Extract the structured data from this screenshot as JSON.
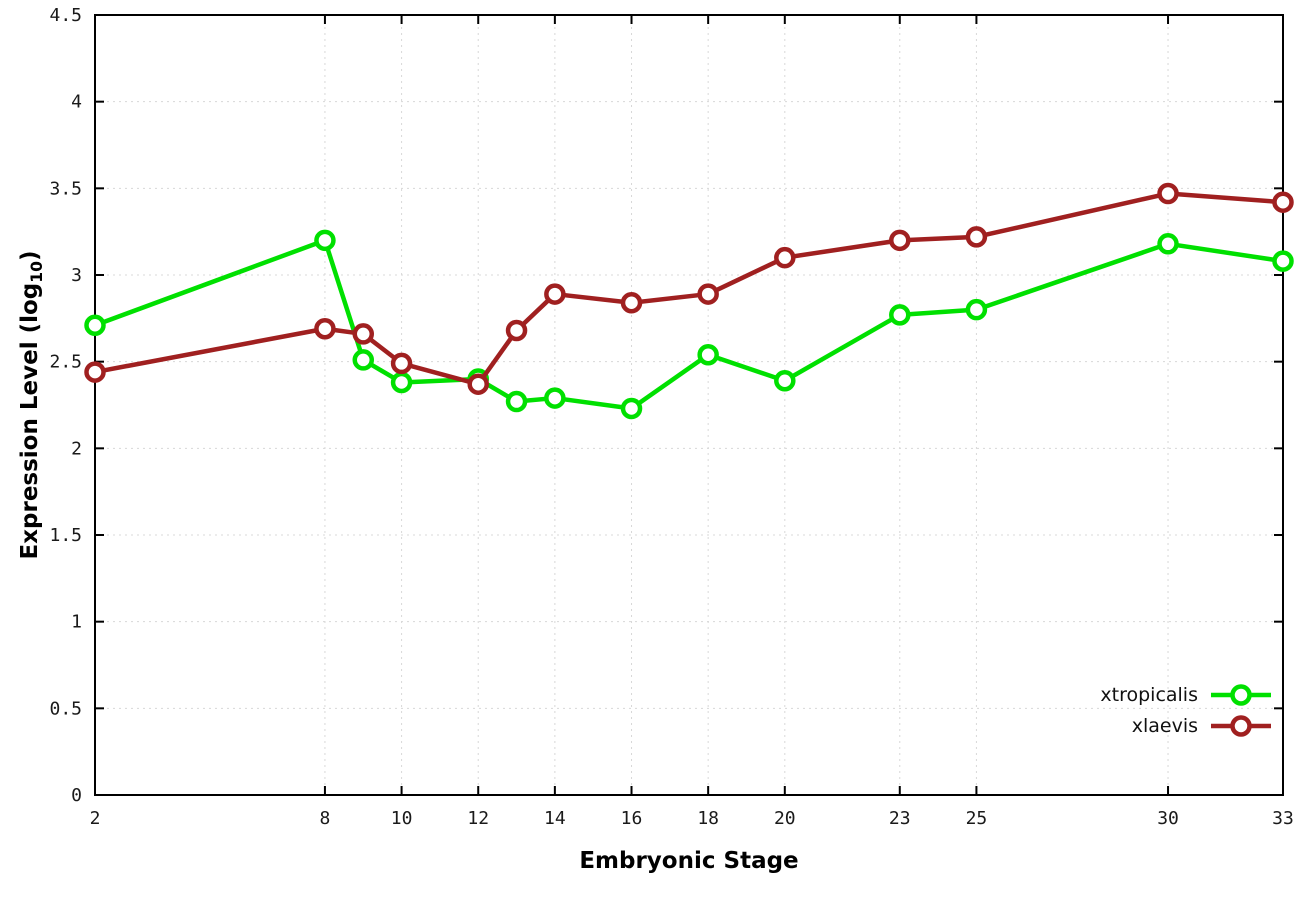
{
  "chart": {
    "ylabel_prefix": "Expression Level (log",
    "ylabel_sub": "10",
    "ylabel_suffix": ")",
    "xlabel": "Embryonic Stage"
  },
  "chart_data": {
    "type": "line",
    "title": "",
    "xlabel": "Embryonic Stage",
    "ylabel": "Expression Level (log10)",
    "xlim": [
      2,
      33
    ],
    "ylim": [
      0,
      4.5
    ],
    "grid": true,
    "legend_position": "bottom-right",
    "marker": "open-circle",
    "xticks": [
      2,
      8,
      10,
      12,
      14,
      16,
      18,
      20,
      23,
      25,
      30,
      33
    ],
    "yticks": [
      0,
      0.5,
      1,
      1.5,
      2,
      2.5,
      3,
      3.5,
      4,
      4.5
    ],
    "ytick_labels": [
      "0",
      "0.5",
      "1",
      "1.5",
      "2",
      "2.5",
      "3",
      "3.5",
      "4",
      "4.5"
    ],
    "x": [
      2,
      8,
      9,
      10,
      12,
      13,
      14,
      16,
      18,
      20,
      23,
      25,
      30,
      33
    ],
    "series": [
      {
        "name": "xtropicalis",
        "color": "#00e000",
        "values": [
          2.71,
          3.2,
          2.51,
          2.38,
          2.4,
          2.27,
          2.29,
          2.23,
          2.54,
          2.39,
          2.77,
          2.8,
          3.18,
          3.08
        ]
      },
      {
        "name": "xlaevis",
        "color": "#a02020",
        "values": [
          2.44,
          2.69,
          2.66,
          2.49,
          2.37,
          2.68,
          2.89,
          2.84,
          2.89,
          3.1,
          3.2,
          3.22,
          3.47,
          3.42
        ]
      }
    ]
  }
}
